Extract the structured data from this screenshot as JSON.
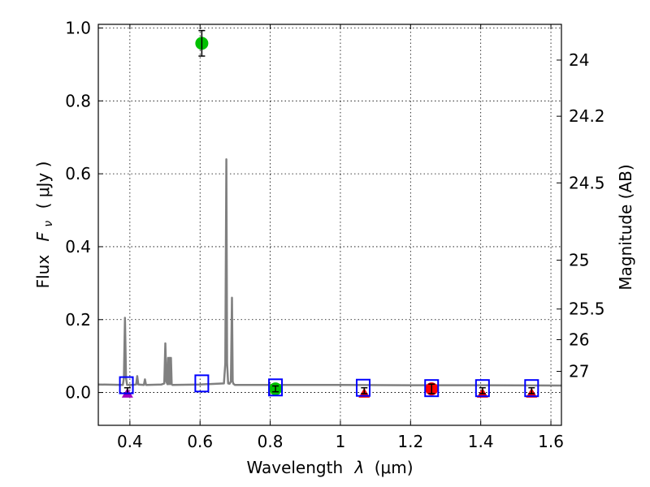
{
  "chart_data": {
    "type": "line",
    "x_axis": {
      "label_prefix": "Wavelength",
      "label_symbol": "λ",
      "label_unit": "(μm)",
      "lim": [
        0.31,
        1.63
      ],
      "ticks": [
        0.4,
        0.6,
        0.8,
        1.0,
        1.2,
        1.4,
        1.6
      ],
      "tick_labels": [
        "0.4",
        "0.6",
        "0.8",
        "1",
        "1.2",
        "1.4",
        "1.6"
      ]
    },
    "y_axis": {
      "label_prefix": "Flux",
      "label_symbol": "F",
      "label_subscript": "ν",
      "label_unit": "( μJy )",
      "lim": [
        -0.09,
        1.01
      ],
      "ticks": [
        0.0,
        0.2,
        0.4,
        0.6,
        0.8,
        1.0
      ],
      "tick_labels": [
        "0.0",
        "0.2",
        "0.4",
        "0.6",
        "0.8",
        "1.0"
      ]
    },
    "y2_axis": {
      "label": "Magnitude (AB)",
      "ticks": [
        {
          "label": "24",
          "flux": 0.912
        },
        {
          "label": "24.2",
          "flux": 0.758
        },
        {
          "label": "24.5",
          "flux": 0.575
        },
        {
          "label": "25",
          "flux": 0.363
        },
        {
          "label": "25.5",
          "flux": 0.229
        },
        {
          "label": "26",
          "flux": 0.145
        },
        {
          "label": "27",
          "flux": 0.058
        }
      ]
    },
    "grid": true,
    "model_spectrum": {
      "color": "#808080",
      "x": [
        0.31,
        0.38,
        0.383,
        0.386,
        0.389,
        0.392,
        0.41,
        0.418,
        0.421,
        0.424,
        0.44,
        0.443,
        0.446,
        0.449,
        0.49,
        0.498,
        0.501,
        0.504,
        0.507,
        0.509,
        0.511,
        0.513,
        0.515,
        0.517,
        0.519,
        0.521,
        0.6,
        0.668,
        0.672,
        0.675,
        0.677,
        0.68,
        0.684,
        0.688,
        0.691,
        0.693,
        0.695,
        0.699,
        0.75,
        0.85,
        1.0,
        1.2,
        1.4,
        1.63
      ],
      "y": [
        0.022,
        0.021,
        0.04,
        0.205,
        0.04,
        0.021,
        0.021,
        0.022,
        0.045,
        0.022,
        0.021,
        0.036,
        0.021,
        0.021,
        0.022,
        0.025,
        0.135,
        0.03,
        0.023,
        0.095,
        0.023,
        0.095,
        0.023,
        0.095,
        0.023,
        0.021,
        0.022,
        0.025,
        0.08,
        0.64,
        0.08,
        0.025,
        0.024,
        0.03,
        0.26,
        0.03,
        0.024,
        0.021,
        0.021,
        0.021,
        0.021,
        0.02,
        0.02,
        0.019
      ]
    },
    "model_photometry": {
      "marker": "open square",
      "color": "#0000ff",
      "x": [
        0.39,
        0.605,
        0.815,
        1.065,
        1.26,
        1.405,
        1.545
      ],
      "y": [
        0.02,
        0.025,
        0.014,
        0.013,
        0.012,
        0.012,
        0.012
      ]
    },
    "detections": {
      "marker": "filled circle",
      "points": [
        {
          "x": 0.605,
          "y": 0.958,
          "err": 0.035,
          "color": "#00c000"
        },
        {
          "x": 0.815,
          "y": 0.01,
          "err": 0.008,
          "color": "#00c000"
        },
        {
          "x": 1.26,
          "y": 0.01,
          "err": 0.013,
          "color": "#ff0000"
        }
      ]
    },
    "upper_limits": {
      "marker": "filled triangle",
      "points": [
        {
          "x": 0.393,
          "y": -0.003,
          "err": 0.008,
          "color": "#a000c0"
        },
        {
          "x": 1.068,
          "y": -0.003,
          "err": 0.008,
          "color": "#ff0000"
        },
        {
          "x": 1.405,
          "y": -0.003,
          "err": 0.008,
          "color": "#ff0000"
        },
        {
          "x": 1.545,
          "y": -0.003,
          "err": 0.008,
          "color": "#ff0000"
        }
      ]
    }
  }
}
